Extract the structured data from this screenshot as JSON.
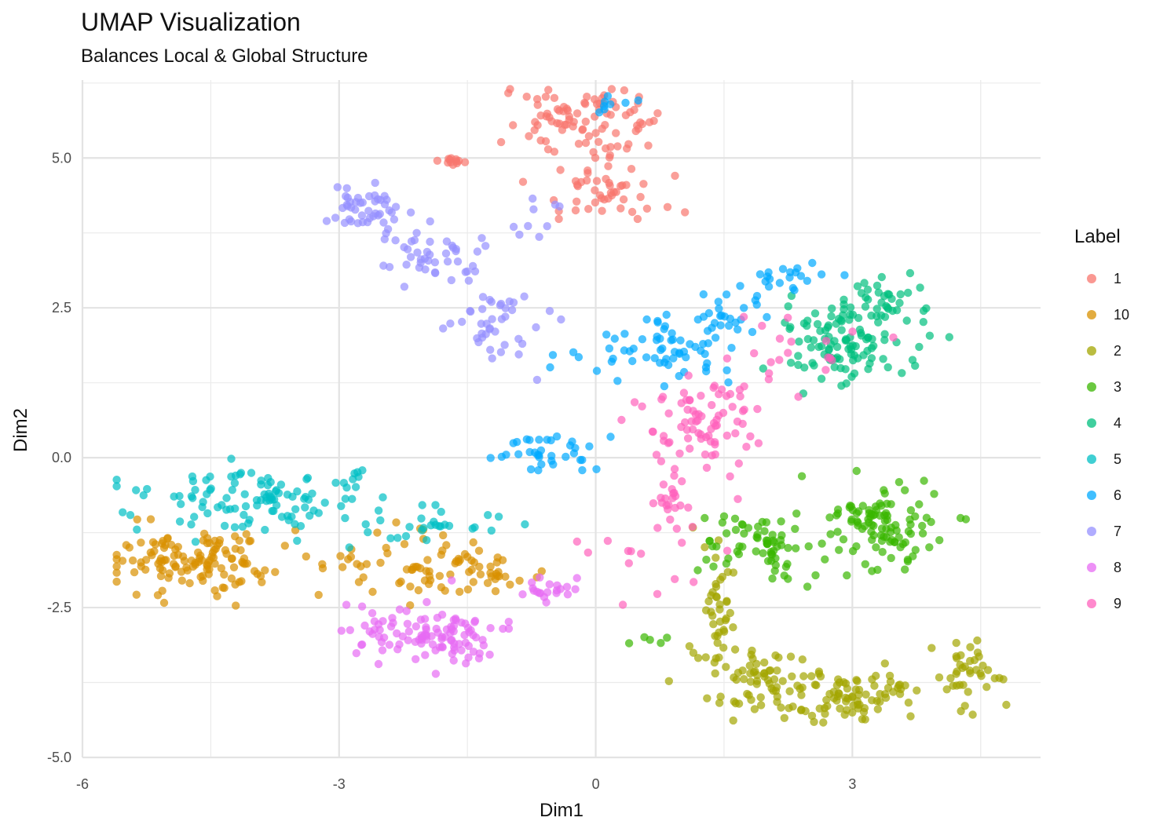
{
  "chart_data": {
    "type": "scatter",
    "title": "UMAP Visualization",
    "subtitle": "Balances Local & Global Structure",
    "xlabel": "Dim1",
    "ylabel": "Dim2",
    "xlim": [
      -6.0,
      5.2
    ],
    "ylim": [
      -5.0,
      6.3
    ],
    "x_ticks": [
      -6,
      -3,
      0,
      3
    ],
    "y_ticks": [
      -5.0,
      -2.5,
      0.0,
      2.5,
      5.0
    ],
    "x_tick_labels": [
      "-6",
      "-3",
      "0",
      "3"
    ],
    "y_tick_labels": [
      "-5.0",
      "-2.5",
      "0.0",
      "2.5",
      "5.0"
    ],
    "grid": true,
    "legend": {
      "title": "Label",
      "position": "right"
    },
    "series": [
      {
        "name": "1",
        "color": "#F8766D",
        "clusters": [
          {
            "cx": -0.2,
            "cy": 5.6,
            "sx": 0.55,
            "sy": 0.45,
            "n": 90
          },
          {
            "cx": 0.05,
            "cy": 4.4,
            "sx": 0.45,
            "sy": 0.3,
            "n": 45
          },
          {
            "cx": -1.7,
            "cy": 4.95,
            "sx": 0.12,
            "sy": 0.04,
            "n": 12
          }
        ]
      },
      {
        "name": "10",
        "color": "#D89000",
        "clusters": [
          {
            "cx": -4.6,
            "cy": -1.7,
            "sx": 0.75,
            "sy": 0.35,
            "n": 130
          },
          {
            "cx": -2.2,
            "cy": -1.8,
            "sx": 0.6,
            "sy": 0.35,
            "n": 60
          },
          {
            "cx": -1.2,
            "cy": -1.95,
            "sx": 0.35,
            "sy": 0.2,
            "n": 25
          }
        ]
      },
      {
        "name": "2",
        "color": "#A3A500",
        "clusters": [
          {
            "cx": 2.9,
            "cy": -4.0,
            "sx": 0.9,
            "sy": 0.3,
            "n": 120
          },
          {
            "cx": 4.4,
            "cy": -3.5,
            "sx": 0.3,
            "sy": 0.25,
            "n": 30
          },
          {
            "cx": 1.4,
            "cy": -2.5,
            "sx": 0.15,
            "sy": 0.55,
            "n": 40
          },
          {
            "cx": 1.9,
            "cy": -3.6,
            "sx": 0.35,
            "sy": 0.3,
            "n": 35
          }
        ]
      },
      {
        "name": "3",
        "color": "#39B600",
        "clusters": [
          {
            "cx": 3.4,
            "cy": -1.1,
            "sx": 0.5,
            "sy": 0.5,
            "n": 100
          },
          {
            "cx": 2.0,
            "cy": -1.4,
            "sx": 0.55,
            "sy": 0.4,
            "n": 70
          },
          {
            "cx": 0.8,
            "cy": -3.0,
            "sx": 0.3,
            "sy": 0.1,
            "n": 5
          }
        ]
      },
      {
        "name": "4",
        "color": "#00BF7D",
        "clusters": [
          {
            "cx": 2.9,
            "cy": 1.9,
            "sx": 0.55,
            "sy": 0.5,
            "n": 110
          },
          {
            "cx": 3.4,
            "cy": 2.7,
            "sx": 0.35,
            "sy": 0.25,
            "n": 30
          }
        ]
      },
      {
        "name": "5",
        "color": "#00BFC4",
        "clusters": [
          {
            "cx": -4.0,
            "cy": -0.7,
            "sx": 0.9,
            "sy": 0.35,
            "n": 110
          },
          {
            "cx": -2.0,
            "cy": -1.15,
            "sx": 0.6,
            "sy": 0.2,
            "n": 30
          }
        ]
      },
      {
        "name": "6",
        "color": "#00A9FF",
        "clusters": [
          {
            "cx": 0.7,
            "cy": 1.8,
            "sx": 0.6,
            "sy": 0.3,
            "n": 60
          },
          {
            "cx": -0.5,
            "cy": 0.1,
            "sx": 0.35,
            "sy": 0.25,
            "n": 35
          },
          {
            "cx": 1.6,
            "cy": 2.3,
            "sx": 0.35,
            "sy": 0.3,
            "n": 25
          },
          {
            "cx": 2.2,
            "cy": 3.0,
            "sx": 0.35,
            "sy": 0.2,
            "n": 20
          },
          {
            "cx": 0.2,
            "cy": 5.9,
            "sx": 0.2,
            "sy": 0.1,
            "n": 8
          }
        ]
      },
      {
        "name": "7",
        "color": "#9590FF",
        "clusters": [
          {
            "cx": -2.7,
            "cy": 4.2,
            "sx": 0.25,
            "sy": 0.3,
            "n": 45
          },
          {
            "cx": -1.9,
            "cy": 3.4,
            "sx": 0.45,
            "sy": 0.35,
            "n": 45
          },
          {
            "cx": -1.2,
            "cy": 2.3,
            "sx": 0.35,
            "sy": 0.4,
            "n": 40
          },
          {
            "cx": -0.7,
            "cy": 4.0,
            "sx": 0.2,
            "sy": 0.2,
            "n": 8
          }
        ]
      },
      {
        "name": "8",
        "color": "#E76BF3",
        "clusters": [
          {
            "cx": -2.0,
            "cy": -2.95,
            "sx": 0.6,
            "sy": 0.35,
            "n": 110
          },
          {
            "cx": -0.5,
            "cy": -2.2,
            "sx": 0.35,
            "sy": 0.15,
            "n": 20
          }
        ]
      },
      {
        "name": "9",
        "color": "#FF62BC",
        "clusters": [
          {
            "cx": 1.3,
            "cy": 0.6,
            "sx": 0.5,
            "sy": 0.5,
            "n": 80
          },
          {
            "cx": 0.9,
            "cy": -0.7,
            "sx": 0.15,
            "sy": 0.35,
            "n": 20
          },
          {
            "cx": 2.2,
            "cy": 1.8,
            "sx": 0.5,
            "sy": 0.4,
            "n": 20
          },
          {
            "cx": 0.4,
            "cy": -1.6,
            "sx": 0.6,
            "sy": 0.5,
            "n": 15
          }
        ]
      }
    ]
  }
}
